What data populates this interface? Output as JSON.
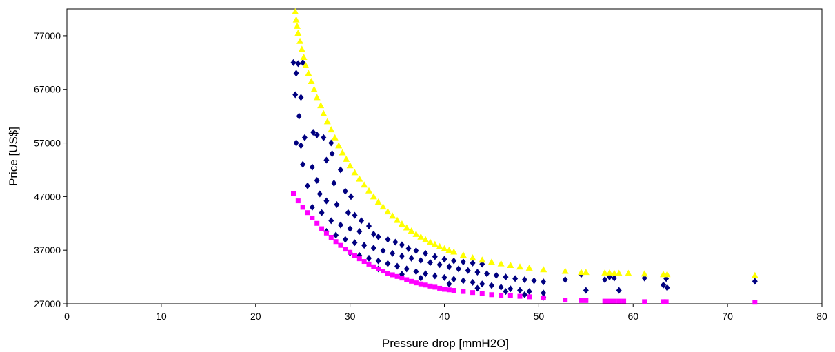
{
  "chart_data": {
    "type": "scatter",
    "xlabel": "Pressure drop [mmH2O]",
    "ylabel": "Price [US$]",
    "xlim": [
      0,
      80
    ],
    "ylim": [
      27000,
      82000
    ],
    "xticks": [
      0,
      10,
      20,
      30,
      40,
      50,
      60,
      70,
      80
    ],
    "yticks": [
      27000,
      37000,
      47000,
      57000,
      67000,
      77000
    ],
    "grid": false,
    "legend": "none",
    "series": [
      {
        "marker": "diamond",
        "color": "#000080",
        "points": [
          [
            24.0,
            72000
          ],
          [
            24.3,
            70000
          ],
          [
            24.5,
            71800
          ],
          [
            24.2,
            66000
          ],
          [
            24.8,
            65500
          ],
          [
            24.6,
            62000
          ],
          [
            25.0,
            72000
          ],
          [
            24.3,
            57000
          ],
          [
            24.8,
            56500
          ],
          [
            25.2,
            58000
          ],
          [
            26.1,
            59000
          ],
          [
            26.5,
            58500
          ],
          [
            27.2,
            58000
          ],
          [
            28.0,
            57000
          ],
          [
            25.0,
            53000
          ],
          [
            26.0,
            52500
          ],
          [
            27.5,
            53800
          ],
          [
            28.1,
            55000
          ],
          [
            29.0,
            52000
          ],
          [
            26.5,
            50000
          ],
          [
            28.3,
            49500
          ],
          [
            29.5,
            48000
          ],
          [
            30.1,
            47000
          ],
          [
            25.5,
            49000
          ],
          [
            26.8,
            47500
          ],
          [
            27.5,
            46200
          ],
          [
            28.6,
            45500
          ],
          [
            29.8,
            44000
          ],
          [
            30.5,
            43500
          ],
          [
            31.2,
            42500
          ],
          [
            32.0,
            41500
          ],
          [
            26.0,
            45000
          ],
          [
            27.0,
            44000
          ],
          [
            28.0,
            42500
          ],
          [
            29.0,
            41700
          ],
          [
            30.0,
            41000
          ],
          [
            31.0,
            40500
          ],
          [
            32.5,
            40000
          ],
          [
            33.0,
            39500
          ],
          [
            34.0,
            39000
          ],
          [
            34.8,
            38500
          ],
          [
            35.5,
            38000
          ],
          [
            36.2,
            37300
          ],
          [
            37.0,
            36900
          ],
          [
            38.0,
            36400
          ],
          [
            39.0,
            35800
          ],
          [
            40.0,
            35300
          ],
          [
            41.0,
            35000
          ],
          [
            42.0,
            34800
          ],
          [
            43.0,
            34600
          ],
          [
            44.0,
            34400
          ],
          [
            27.5,
            40500
          ],
          [
            28.5,
            39800
          ],
          [
            29.5,
            39000
          ],
          [
            30.5,
            38400
          ],
          [
            31.5,
            37900
          ],
          [
            32.5,
            37400
          ],
          [
            33.5,
            36900
          ],
          [
            34.5,
            36400
          ],
          [
            35.5,
            35900
          ],
          [
            36.5,
            35500
          ],
          [
            37.5,
            35100
          ],
          [
            38.5,
            34700
          ],
          [
            39.5,
            34300
          ],
          [
            40.5,
            33900
          ],
          [
            41.5,
            33500
          ],
          [
            42.5,
            33200
          ],
          [
            43.5,
            32900
          ],
          [
            44.5,
            32600
          ],
          [
            45.5,
            32300
          ],
          [
            46.5,
            32000
          ],
          [
            47.5,
            31700
          ],
          [
            48.5,
            31500
          ],
          [
            49.5,
            31300
          ],
          [
            50.5,
            31100
          ],
          [
            30.0,
            36500
          ],
          [
            31.0,
            36000
          ],
          [
            32.0,
            35500
          ],
          [
            33.0,
            35000
          ],
          [
            34.0,
            34500
          ],
          [
            35.0,
            34000
          ],
          [
            36.0,
            33500
          ],
          [
            37.0,
            33000
          ],
          [
            38.0,
            32600
          ],
          [
            39.0,
            32200
          ],
          [
            40.0,
            31900
          ],
          [
            41.0,
            31600
          ],
          [
            42.0,
            31300
          ],
          [
            43.0,
            31000
          ],
          [
            44.0,
            30700
          ],
          [
            45.0,
            30400
          ],
          [
            46.0,
            30100
          ],
          [
            47.0,
            29800
          ],
          [
            48.0,
            29500
          ],
          [
            49.0,
            29300
          ],
          [
            50.5,
            29000
          ],
          [
            33.0,
            33500
          ],
          [
            35.5,
            32500
          ],
          [
            37.5,
            31800
          ],
          [
            40.5,
            30700
          ],
          [
            43.5,
            29900
          ],
          [
            46.5,
            29300
          ],
          [
            48.5,
            28700
          ],
          [
            50.5,
            28200
          ],
          [
            52.8,
            31500
          ],
          [
            54.5,
            32500
          ],
          [
            55.0,
            29500
          ],
          [
            57.0,
            31500
          ],
          [
            57.5,
            32000
          ],
          [
            58.0,
            31800
          ],
          [
            58.5,
            29500
          ],
          [
            61.2,
            31800
          ],
          [
            63.2,
            30500
          ],
          [
            63.5,
            31700
          ],
          [
            63.6,
            30000
          ],
          [
            72.9,
            31200
          ]
        ]
      },
      {
        "marker": "square",
        "color": "#ff00ff",
        "points": [
          [
            24.0,
            47500
          ],
          [
            24.5,
            46200
          ],
          [
            25.0,
            45000
          ],
          [
            25.5,
            44000
          ],
          [
            26.0,
            43000
          ],
          [
            26.5,
            42000
          ],
          [
            27.0,
            41000
          ],
          [
            27.5,
            40200
          ],
          [
            28.0,
            39400
          ],
          [
            28.5,
            38600
          ],
          [
            29.0,
            37900
          ],
          [
            29.5,
            37200
          ],
          [
            30.0,
            36600
          ],
          [
            30.5,
            36000
          ],
          [
            31.0,
            35400
          ],
          [
            31.5,
            34900
          ],
          [
            32.0,
            34400
          ],
          [
            32.5,
            33900
          ],
          [
            33.0,
            33500
          ],
          [
            33.5,
            33100
          ],
          [
            34.0,
            32700
          ],
          [
            34.5,
            32400
          ],
          [
            35.0,
            32100
          ],
          [
            35.5,
            31800
          ],
          [
            36.0,
            31500
          ],
          [
            36.5,
            31200
          ],
          [
            37.0,
            30900
          ],
          [
            37.5,
            30700
          ],
          [
            38.0,
            30500
          ],
          [
            38.5,
            30300
          ],
          [
            39.0,
            30100
          ],
          [
            39.5,
            29900
          ],
          [
            40.0,
            29700
          ],
          [
            40.5,
            29600
          ],
          [
            41.0,
            29500
          ],
          [
            42.0,
            29300
          ],
          [
            43.0,
            29100
          ],
          [
            44.0,
            28900
          ],
          [
            45.0,
            28700
          ],
          [
            46.0,
            28600
          ],
          [
            47.0,
            28500
          ],
          [
            48.0,
            28400
          ],
          [
            49.0,
            28300
          ],
          [
            50.5,
            28100
          ],
          [
            52.8,
            27700
          ],
          [
            54.5,
            27600
          ],
          [
            55.0,
            27600
          ],
          [
            57.0,
            27500
          ],
          [
            57.5,
            27500
          ],
          [
            58.0,
            27500
          ],
          [
            58.5,
            27500
          ],
          [
            59.0,
            27500
          ],
          [
            61.2,
            27400
          ],
          [
            63.2,
            27400
          ],
          [
            63.5,
            27400
          ],
          [
            72.9,
            27300
          ]
        ]
      },
      {
        "marker": "triangle",
        "color": "#ffff00",
        "points": [
          [
            24.2,
            81500
          ],
          [
            24.3,
            80000
          ],
          [
            24.4,
            78800
          ],
          [
            24.5,
            77500
          ],
          [
            24.7,
            76000
          ],
          [
            24.9,
            74500
          ],
          [
            25.1,
            73000
          ],
          [
            25.3,
            71500
          ],
          [
            25.6,
            70000
          ],
          [
            25.9,
            68500
          ],
          [
            26.2,
            67000
          ],
          [
            26.5,
            65500
          ],
          [
            26.9,
            64000
          ],
          [
            27.2,
            62500
          ],
          [
            27.6,
            61000
          ],
          [
            28.0,
            59500
          ],
          [
            28.4,
            58000
          ],
          [
            28.8,
            56500
          ],
          [
            29.2,
            55200
          ],
          [
            29.6,
            54000
          ],
          [
            30.0,
            52800
          ],
          [
            30.5,
            51500
          ],
          [
            31.0,
            50300
          ],
          [
            31.5,
            49200
          ],
          [
            32.0,
            48100
          ],
          [
            32.5,
            47000
          ],
          [
            33.0,
            46000
          ],
          [
            33.5,
            45100
          ],
          [
            34.0,
            44200
          ],
          [
            34.5,
            43400
          ],
          [
            35.0,
            42600
          ],
          [
            35.5,
            41900
          ],
          [
            36.0,
            41200
          ],
          [
            36.5,
            40600
          ],
          [
            37.0,
            40000
          ],
          [
            37.5,
            39500
          ],
          [
            38.0,
            39000
          ],
          [
            38.5,
            38500
          ],
          [
            39.0,
            38100
          ],
          [
            39.5,
            37700
          ],
          [
            40.0,
            37300
          ],
          [
            40.5,
            37000
          ],
          [
            41.0,
            36700
          ],
          [
            42.0,
            36100
          ],
          [
            43.0,
            35600
          ],
          [
            44.0,
            35200
          ],
          [
            45.0,
            34800
          ],
          [
            46.0,
            34500
          ],
          [
            47.0,
            34200
          ],
          [
            48.0,
            33900
          ],
          [
            49.0,
            33700
          ],
          [
            50.5,
            33400
          ],
          [
            52.8,
            33100
          ],
          [
            54.5,
            32900
          ],
          [
            55.0,
            32900
          ],
          [
            57.0,
            32800
          ],
          [
            57.5,
            32800
          ],
          [
            58.0,
            32700
          ],
          [
            58.5,
            32700
          ],
          [
            59.5,
            32700
          ],
          [
            61.2,
            32600
          ],
          [
            63.2,
            32500
          ],
          [
            63.6,
            32500
          ],
          [
            72.9,
            32300
          ]
        ]
      }
    ]
  }
}
